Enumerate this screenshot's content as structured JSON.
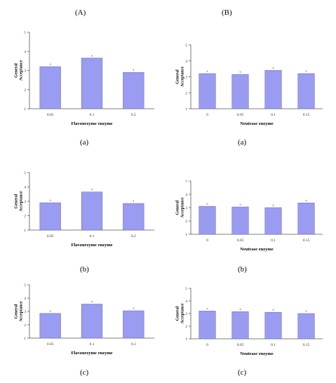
{
  "headers": {
    "left": "(A)",
    "right": "(B)"
  },
  "subcaptions": [
    "(a)",
    "(a)",
    "(b)",
    "(b)",
    "(c)",
    "(c)"
  ],
  "style": {
    "bar_fill": "#9a9cf2",
    "bar_edge": "#6f70b8",
    "axis_color": "#555555"
  },
  "chart_data": [
    {
      "type": "bar",
      "title": "",
      "xlabel": "Flavourzyme enzyme",
      "ylabel": "General Acceptance",
      "categories": [
        "0.05",
        "0.1",
        "0.2"
      ],
      "values": [
        3.2,
        3.65,
        2.9
      ],
      "data_labels": [
        "a",
        "a",
        "a"
      ],
      "ylim": [
        1,
        5
      ],
      "yticks": [
        1,
        2,
        3,
        4,
        5
      ],
      "grid": false,
      "legend": "none"
    },
    {
      "type": "bar",
      "title": "",
      "xlabel": "Neutrase enzyme",
      "ylabel": "General Acceptance",
      "categories": [
        "0",
        "0.05",
        "0.1",
        "0.15"
      ],
      "values": [
        3.2,
        3.15,
        3.4,
        3.2
      ],
      "data_labels": [
        "a",
        "a",
        "a",
        "a"
      ],
      "ylim": [
        1,
        5
      ],
      "yticks": [
        1,
        2,
        3,
        4,
        5
      ],
      "grid": false,
      "legend": "none"
    },
    {
      "type": "bar",
      "title": "",
      "xlabel": "Flavourzyme enzyme",
      "ylabel": "General Acceptance",
      "categories": [
        "0.05",
        "0.1",
        "0.2"
      ],
      "values": [
        2.9,
        3.65,
        2.85
      ],
      "data_labels": [
        "a",
        "a",
        "a"
      ],
      "ylim": [
        1,
        5
      ],
      "yticks": [
        1,
        2,
        3,
        4,
        5
      ],
      "grid": false,
      "legend": "none"
    },
    {
      "type": "bar",
      "title": "",
      "xlabel": "Neutrase enzyme",
      "ylabel": "General Acceptance",
      "categories": [
        "0",
        "0.05",
        "0.1",
        "0.15"
      ],
      "values": [
        3.1,
        3.05,
        3.0,
        3.35
      ],
      "data_labels": [
        "a",
        "a",
        "a",
        "a"
      ],
      "ylim": [
        1,
        5
      ],
      "yticks": [
        1,
        2,
        3,
        4,
        5
      ],
      "grid": false,
      "legend": "none"
    },
    {
      "type": "bar",
      "title": "",
      "xlabel": "Flavourzyme enzyme",
      "ylabel": "General Acceptance",
      "categories": [
        "0.05",
        "0.1",
        "0.2"
      ],
      "values": [
        2.85,
        3.55,
        3.05
      ],
      "data_labels": [
        "a",
        "a",
        "a"
      ],
      "ylim": [
        1,
        5
      ],
      "yticks": [
        1,
        2,
        3,
        4,
        5
      ],
      "grid": false,
      "legend": "none"
    },
    {
      "type": "bar",
      "title": "",
      "xlabel": "Neutrase enzyme",
      "ylabel": "General Acceptance",
      "categories": [
        "0",
        "0.05",
        "0.1",
        "0.15"
      ],
      "values": [
        3.2,
        3.15,
        3.1,
        3.0
      ],
      "data_labels": [
        "a",
        "a",
        "a",
        "a"
      ],
      "ylim": [
        1,
        5
      ],
      "yticks": [
        1,
        2,
        3,
        4,
        5
      ],
      "grid": false,
      "legend": "none"
    }
  ]
}
